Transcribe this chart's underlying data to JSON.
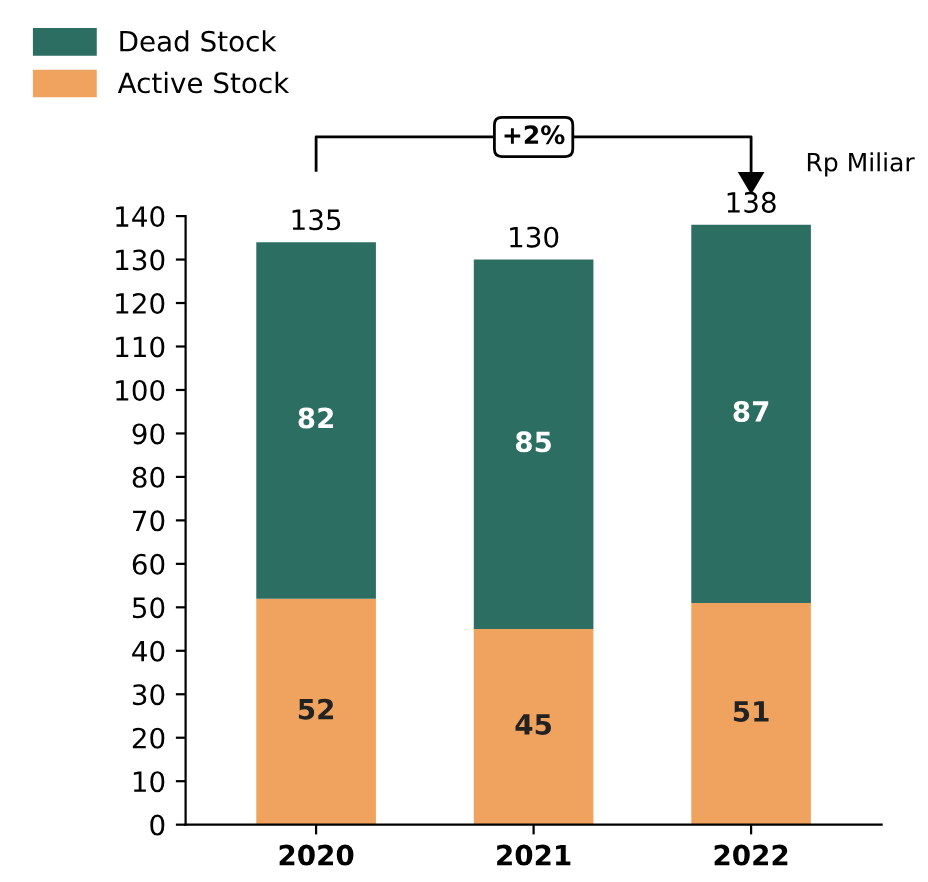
{
  "chart_data": {
    "type": "bar",
    "stacked": true,
    "categories": [
      "2020",
      "2021",
      "2022"
    ],
    "series": [
      {
        "name": "Active Stock",
        "color": "#f0a35e",
        "values": [
          52,
          45,
          51
        ]
      },
      {
        "name": "Dead Stock",
        "color": "#2d6e63",
        "values": [
          82,
          85,
          87
        ]
      }
    ],
    "totals": [
      "135",
      "130",
      "138"
    ],
    "data_labels": true,
    "ylim": [
      0,
      140
    ],
    "yticks": [
      0,
      10,
      20,
      30,
      40,
      50,
      60,
      70,
      80,
      90,
      100,
      110,
      120,
      130,
      140
    ],
    "annotations": [
      "+2%",
      "Rp Miliar"
    ],
    "legend": "top left",
    "grid": false
  }
}
